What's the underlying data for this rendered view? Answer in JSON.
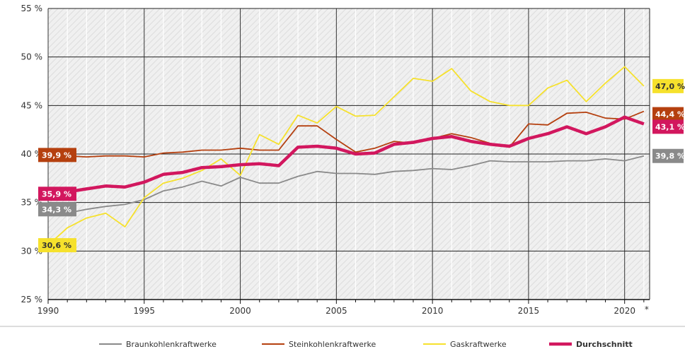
{
  "chart_data": {
    "type": "line",
    "x": [
      1990,
      1991,
      1992,
      1993,
      1994,
      1995,
      1996,
      1997,
      1998,
      1999,
      2000,
      2001,
      2002,
      2003,
      2004,
      2005,
      2006,
      2007,
      2008,
      2009,
      2010,
      2011,
      2012,
      2013,
      2014,
      2015,
      2016,
      2017,
      2018,
      2019,
      2020,
      2021
    ],
    "xticks": [
      "1990",
      "1995",
      "2000",
      "2005",
      "2010",
      "2015",
      "2020"
    ],
    "x_note": "*",
    "yticks": [
      "25 %",
      "30 %",
      "35 %",
      "40 %",
      "45 %",
      "50 %",
      "55 %"
    ],
    "ylim": [
      25,
      55
    ],
    "grid": true,
    "legend_position": "bottom",
    "series": [
      {
        "name": "Braunkohlenkraftwerke",
        "color": "#8a8a8a",
        "values": [
          34.3,
          33.9,
          34.3,
          34.6,
          34.8,
          35.3,
          36.2,
          36.6,
          37.2,
          36.7,
          37.6,
          37.0,
          37.0,
          37.7,
          38.2,
          38.0,
          38.0,
          37.9,
          38.2,
          38.3,
          38.5,
          38.4,
          38.8,
          39.3,
          39.2,
          39.2,
          39.2,
          39.3,
          39.3,
          39.5,
          39.3,
          39.8
        ],
        "start_label": "34,3 %",
        "end_label": "39,8 %"
      },
      {
        "name": "Steinkohlenkraftwerke",
        "color": "#b5400f",
        "values": [
          39.9,
          39.8,
          39.7,
          39.8,
          39.8,
          39.7,
          40.1,
          40.2,
          40.4,
          40.4,
          40.6,
          40.4,
          40.4,
          42.9,
          42.9,
          41.5,
          40.2,
          40.6,
          41.3,
          41.1,
          41.6,
          42.1,
          41.7,
          41.1,
          40.7,
          43.1,
          43.0,
          44.2,
          44.3,
          43.7,
          43.6,
          44.4
        ],
        "start_label": "39,9 %",
        "end_label": "44,4 %"
      },
      {
        "name": "Gaskraftwerke",
        "color": "#f6e12c",
        "values": [
          30.6,
          32.4,
          33.4,
          33.9,
          32.5,
          35.5,
          37.0,
          37.5,
          38.3,
          39.5,
          37.8,
          42.0,
          41.0,
          44.0,
          43.2,
          44.9,
          43.9,
          44.0,
          45.9,
          47.8,
          47.5,
          48.8,
          46.5,
          45.4,
          45.0,
          45.0,
          46.8,
          47.6,
          45.4,
          47.3,
          49.0,
          47.0
        ],
        "start_label": "30,6 %",
        "end_label": "47,0 %"
      },
      {
        "name": "Durchschnitt",
        "color": "#d2175e",
        "values": [
          35.9,
          36.1,
          36.4,
          36.7,
          36.6,
          37.1,
          37.9,
          38.1,
          38.6,
          38.7,
          38.9,
          39.0,
          38.8,
          40.7,
          40.8,
          40.6,
          40.0,
          40.1,
          41.0,
          41.2,
          41.6,
          41.8,
          41.3,
          41.0,
          40.8,
          41.6,
          42.1,
          42.8,
          42.1,
          42.8,
          43.8,
          43.1
        ],
        "start_label": "35,9 %",
        "end_label": "43,1 %"
      }
    ]
  }
}
